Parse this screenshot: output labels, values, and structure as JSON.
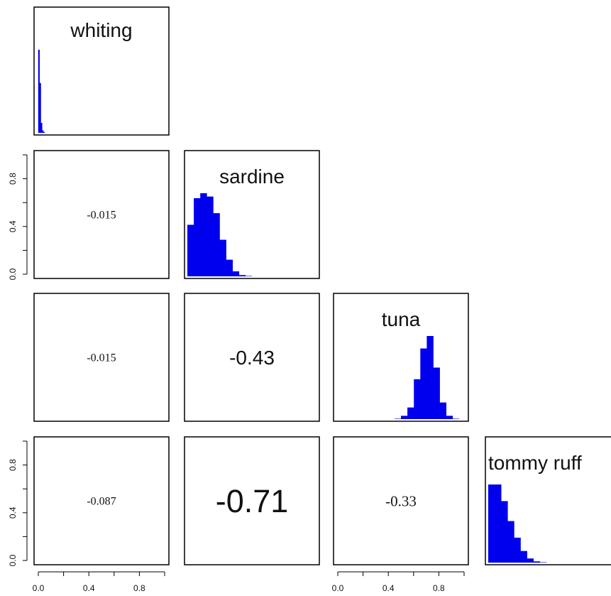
{
  "chart_data": {
    "type": "pairs-histogram-correlation",
    "variables": [
      "whiting",
      "sardine",
      "tuna",
      "tommy ruff"
    ],
    "bar_color": "#0000ee",
    "axis_ticks": [
      "0.0",
      "0.4",
      "0.8"
    ],
    "axis_range": [
      0,
      1
    ],
    "histograms": [
      {
        "name": "whiting",
        "bin_width": 0.01,
        "values": [
          0,
          1,
          0.6,
          0.12,
          0.03,
          0.01,
          0,
          0,
          0,
          0,
          0,
          0,
          0,
          0,
          0,
          0,
          0,
          0,
          0,
          0,
          0,
          0,
          0,
          0,
          0,
          0,
          0,
          0,
          0,
          0,
          0,
          0,
          0,
          0,
          0,
          0,
          0,
          0,
          0,
          0,
          0,
          0,
          0,
          0,
          0,
          0,
          0,
          0,
          0,
          0,
          0,
          0,
          0,
          0,
          0,
          0,
          0,
          0,
          0,
          0,
          0,
          0,
          0,
          0,
          0,
          0,
          0,
          0,
          0,
          0,
          0,
          0,
          0,
          0,
          0,
          0,
          0,
          0,
          0,
          0,
          0,
          0,
          0,
          0,
          0,
          0,
          0,
          0,
          0,
          0,
          0,
          0,
          0,
          0,
          0,
          0,
          0,
          0,
          0,
          0
        ]
      },
      {
        "name": "sardine",
        "bin_width": 0.05,
        "values": [
          0.62,
          0.94,
          1.0,
          0.96,
          0.76,
          0.44,
          0.2,
          0.06,
          0.015,
          0.005,
          0,
          0,
          0,
          0,
          0,
          0,
          0,
          0,
          0,
          0
        ]
      },
      {
        "name": "tuna",
        "bin_width": 0.05,
        "values": [
          0,
          0,
          0,
          0,
          0,
          0,
          0,
          0,
          0,
          0.005,
          0.04,
          0.14,
          0.48,
          0.85,
          1.0,
          0.62,
          0.2,
          0.04,
          0.005,
          0
        ]
      },
      {
        "name": "tommy ruff",
        "bin_width": 0.05,
        "values": [
          0.94,
          0.94,
          0.74,
          0.5,
          0.3,
          0.14,
          0.05,
          0.015,
          0.005,
          0,
          0,
          0,
          0,
          0,
          0,
          0,
          0,
          0,
          0,
          0
        ]
      }
    ],
    "correlations": [
      {
        "row": "sardine",
        "col": "whiting",
        "value": "-0.015",
        "size": 0.25
      },
      {
        "row": "tuna",
        "col": "whiting",
        "value": "-0.015",
        "size": 0.25
      },
      {
        "row": "tuna",
        "col": "sardine",
        "value": "-0.43",
        "size": 0.43
      },
      {
        "row": "tommy ruff",
        "col": "whiting",
        "value": "-0.087",
        "size": 0.25
      },
      {
        "row": "tommy ruff",
        "col": "sardine",
        "value": "-0.71",
        "size": 0.71
      },
      {
        "row": "tommy ruff",
        "col": "tuna",
        "value": "-0.33",
        "size": 0.33
      }
    ]
  }
}
